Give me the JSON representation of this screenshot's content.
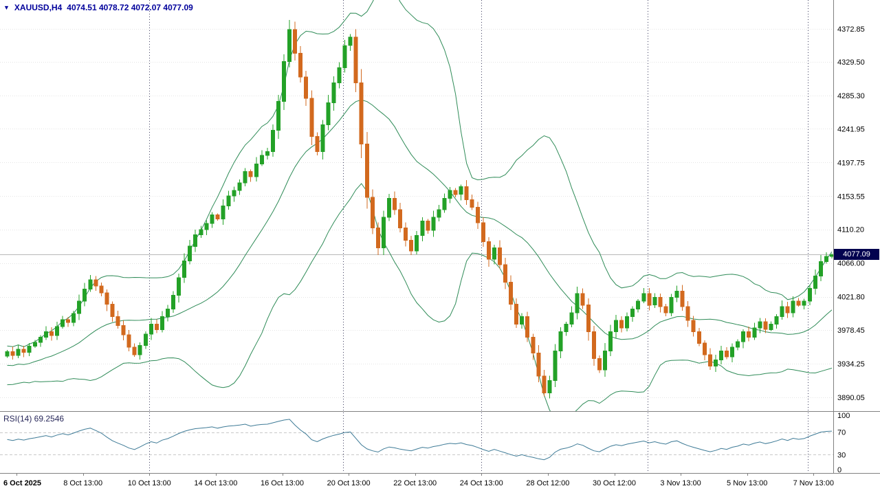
{
  "header": {
    "marker": "▼",
    "symbol": "XAUUSD,H4",
    "quote": "4074.51 4078.72 4072.07 4077.09"
  },
  "price_tag": {
    "value": "4077.09"
  },
  "price_axis": {
    "ticks": [
      "4372.85",
      "4329.50",
      "4285.30",
      "4241.95",
      "4197.75",
      "4153.55",
      "4110.20",
      "4066.00",
      "4021.80",
      "3978.45",
      "3934.25",
      "3890.05"
    ]
  },
  "time_axis": {
    "labels": [
      {
        "text": "6 Oct 2025",
        "index": 2,
        "bold": true,
        "align": "start"
      },
      {
        "text": "8 Oct 13:00",
        "index": 14
      },
      {
        "text": "10 Oct 13:00",
        "index": 26
      },
      {
        "text": "14 Oct 13:00",
        "index": 38
      },
      {
        "text": "16 Oct 13:00",
        "index": 50
      },
      {
        "text": "20 Oct 13:00",
        "index": 62
      },
      {
        "text": "22 Oct 13:00",
        "index": 74
      },
      {
        "text": "24 Oct 13:00",
        "index": 86
      },
      {
        "text": "28 Oct 12:00",
        "index": 98
      },
      {
        "text": "30 Oct 12:00",
        "index": 110
      },
      {
        "text": "3 Nov 13:00",
        "index": 122
      },
      {
        "text": "5 Nov 13:00",
        "index": 134
      },
      {
        "text": "7 Nov 13:00",
        "index": 146
      }
    ]
  },
  "rsi_pane": {
    "label": "RSI(14) 69.2546",
    "levels": [
      {
        "text": "100",
        "value": 100
      },
      {
        "text": "70",
        "value": 70
      },
      {
        "text": "30",
        "value": 30
      },
      {
        "text": "0",
        "value": 0
      }
    ],
    "guide_lines": [
      70,
      30
    ]
  },
  "colors": {
    "background": "#ffffff",
    "grid": "#e4e4e4",
    "separator": "#3c3c5e",
    "candle_up": "#23a127",
    "candle_down": "#d2691e",
    "bollinger": "#2e8b57",
    "rsi_line": "#3d7a96",
    "axis_text": "#000000",
    "header_text": "#00009b",
    "price_tag_bg": "#02024f",
    "price_tag_text": "#ffffff",
    "current_price_line": "#b3b3b3",
    "pane_border": "#808080",
    "rsi_guide": "#c8c8c8"
  },
  "chart_data": {
    "type": "candlestick",
    "symbol": "XAUUSD",
    "timeframe": "H4",
    "title": "XAUUSD,H4",
    "ylim": [
      3890.05,
      4372.85
    ],
    "current_price": 4077.09,
    "last_candle": {
      "open": 4074.51,
      "high": 4078.72,
      "low": 4072.07,
      "close": 4077.09
    },
    "first_open": 3944,
    "pre_closes": [
      3920,
      3950,
      3915,
      3960,
      3930,
      3912,
      3925,
      3918,
      3930,
      3922,
      3928,
      3920,
      3926,
      3930,
      3924,
      3932,
      3936,
      3940,
      3944,
      3948
    ],
    "closes": [
      3950,
      3945,
      3953,
      3949,
      3957,
      3962,
      3969,
      3976,
      3971,
      3983,
      3992,
      3988,
      4000,
      4016,
      4032,
      4044,
      4036,
      4027,
      4012,
      3996,
      3984,
      3972,
      3956,
      3946,
      3958,
      3973,
      3986,
      3979,
      3996,
      4006,
      4024,
      4047,
      4069,
      4088,
      4103,
      4110,
      4118,
      4129,
      4124,
      4141,
      4154,
      4161,
      4171,
      4186,
      4179,
      4196,
      4207,
      4212,
      4240,
      4278,
      4330,
      4372,
      4341,
      4310,
      4282,
      4232,
      4212,
      4247,
      4276,
      4302,
      4322,
      4351,
      4362,
      4302,
      4222,
      4152,
      4112,
      4086,
      4126,
      4151,
      4136,
      4112,
      4096,
      4082,
      4102,
      4121,
      4109,
      4126,
      4136,
      4151,
      4161,
      4156,
      4166,
      4149,
      4139,
      4119,
      4094,
      4071,
      4086,
      4064,
      4041,
      4012,
      3986,
      3996,
      3969,
      3948,
      3918,
      3896,
      3912,
      3951,
      3976,
      3986,
      4001,
      4026,
      4011,
      3976,
      3941,
      3926,
      3951,
      3976,
      3991,
      3981,
      3996,
      4006,
      4016,
      4026,
      4011,
      4021,
      4009,
      4001,
      4021,
      4029,
      4009,
      3991,
      3976,
      3961,
      3946,
      3931,
      3939,
      3951,
      3943,
      3956,
      3963,
      3976,
      3969,
      3981,
      3989,
      3979,
      3986,
      3996,
      4009,
      4001,
      4016,
      4011,
      4016,
      4033,
      4049,
      4068,
      4074.51,
      4077.09
    ],
    "indicators": {
      "bollinger": {
        "period": 20,
        "deviation": 2
      },
      "rsi": {
        "period": 14,
        "value": 69.2546
      }
    },
    "separators": [
      26,
      61,
      86,
      116,
      145
    ]
  }
}
